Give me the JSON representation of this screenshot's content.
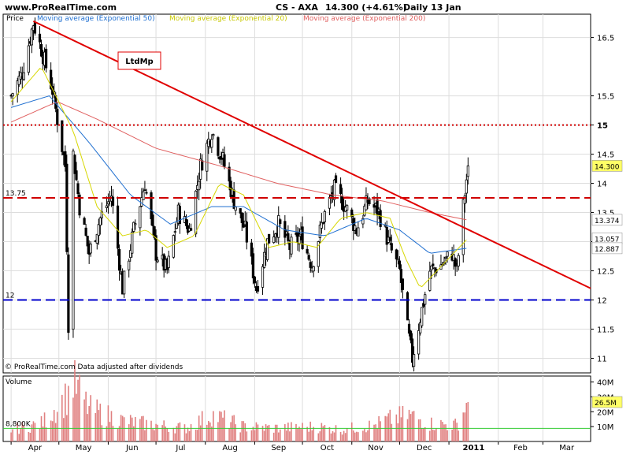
{
  "header": {
    "site": "www.ProRealTime.com",
    "instrument": "CS - AXA",
    "quote": "14.300 (+4.61%)",
    "period": "Daily  13 Jan"
  },
  "legend": {
    "price": "Price",
    "ma50": "Moving average (Exponential 50)",
    "ma20": "Moving average (Exponential 20)",
    "ma200": "Moving average (Exponential 200)"
  },
  "footer_note": "© ProRealTime.com  Data adjusted after dividends",
  "colors": {
    "candle": "#000000",
    "ma50": "#1f6fd0",
    "ma20": "#d7d700",
    "ma200": "#e06060",
    "trendline": "#e00000",
    "resistance": "#d00000",
    "support": "#0000cc",
    "volume_bar": "#e08080",
    "volume_ref": "#33cc33",
    "grid": "#dddddd"
  },
  "chart_data": [
    {
      "type": "candlestick",
      "x_labels": [
        "Apr",
        "May",
        "Jun",
        "Jul",
        "Aug",
        "Sep",
        "Oct",
        "Nov",
        "Dec",
        "2011",
        "Feb",
        "Mar"
      ],
      "y_ticks": [
        11,
        11.5,
        12,
        12.5,
        13,
        13.5,
        14,
        14.5,
        15,
        15.5,
        16.5
      ],
      "ylim": [
        10.75,
        16.9
      ],
      "grid": true,
      "last_price": 14.3,
      "series_last_values": {
        "ma20": 13.057,
        "ma50": 12.887,
        "ma200": 13.374
      },
      "horizontal_lines": [
        {
          "value": 15,
          "style": "dotted",
          "color": "#d00000",
          "label": "15"
        },
        {
          "value": 13.75,
          "style": "dashed",
          "color": "#d00000",
          "label": "13.75"
        },
        {
          "value": 12,
          "style": "dashed",
          "color": "#0000cc",
          "label": "12"
        }
      ],
      "trendline": {
        "from": {
          "date": "2010-04-15",
          "value": 16.78
        },
        "to": {
          "date": "2011-03-31",
          "value": 12.2
        }
      },
      "annotation": "LtdMp",
      "anchors": [
        [
          "2010-04-01",
          15.5
        ],
        [
          "2010-04-08",
          15.9
        ],
        [
          "2010-04-15",
          16.75
        ],
        [
          "2010-04-20",
          16.3
        ],
        [
          "2010-04-27",
          15.6
        ],
        [
          "2010-04-30",
          15.1
        ],
        [
          "2010-05-05",
          14.3
        ],
        [
          "2010-05-07",
          11.6
        ],
        [
          "2010-05-10",
          14.5
        ],
        [
          "2010-05-14",
          13.6
        ],
        [
          "2010-05-20",
          12.8
        ],
        [
          "2010-05-27",
          13.4
        ],
        [
          "2010-06-03",
          13.8
        ],
        [
          "2010-06-10",
          12.2
        ],
        [
          "2010-06-17",
          13.2
        ],
        [
          "2010-06-24",
          14.0
        ],
        [
          "2010-07-01",
          12.8
        ],
        [
          "2010-07-08",
          12.5
        ],
        [
          "2010-07-15",
          13.5
        ],
        [
          "2010-07-22",
          13.2
        ],
        [
          "2010-07-29",
          14.3
        ],
        [
          "2010-08-05",
          14.9
        ],
        [
          "2010-08-12",
          14.4
        ],
        [
          "2010-08-19",
          13.7
        ],
        [
          "2010-08-26",
          13.2
        ],
        [
          "2010-09-02",
          12.2
        ],
        [
          "2010-09-09",
          13.0
        ],
        [
          "2010-09-16",
          13.3
        ],
        [
          "2010-09-23",
          12.9
        ],
        [
          "2010-09-30",
          13.1
        ],
        [
          "2010-10-07",
          12.6
        ],
        [
          "2010-10-14",
          13.4
        ],
        [
          "2010-10-21",
          13.9
        ],
        [
          "2010-10-28",
          13.6
        ],
        [
          "2010-11-04",
          13.2
        ],
        [
          "2010-11-11",
          13.7
        ],
        [
          "2010-11-18",
          13.5
        ],
        [
          "2010-11-25",
          12.9
        ],
        [
          "2010-12-01",
          12.5
        ],
        [
          "2010-12-06",
          11.5
        ],
        [
          "2010-12-09",
          11.0
        ],
        [
          "2010-12-14",
          11.7
        ],
        [
          "2010-12-20",
          12.5
        ],
        [
          "2010-12-27",
          12.6
        ],
        [
          "2011-01-03",
          12.8
        ],
        [
          "2011-01-06",
          12.5
        ],
        [
          "2011-01-10",
          13.6
        ],
        [
          "2011-01-13",
          14.3
        ]
      ],
      "ma_anchors": {
        "ma20": [
          [
            "2010-04-01",
            15.4
          ],
          [
            "2010-04-20",
            16.0
          ],
          [
            "2010-05-10",
            14.9
          ],
          [
            "2010-05-25",
            13.6
          ],
          [
            "2010-06-10",
            13.1
          ],
          [
            "2010-06-25",
            13.2
          ],
          [
            "2010-07-08",
            12.9
          ],
          [
            "2010-07-25",
            13.1
          ],
          [
            "2010-08-10",
            14.0
          ],
          [
            "2010-08-25",
            13.8
          ],
          [
            "2010-09-10",
            12.9
          ],
          [
            "2010-09-25",
            13.0
          ],
          [
            "2010-10-10",
            12.9
          ],
          [
            "2010-10-25",
            13.4
          ],
          [
            "2010-11-10",
            13.5
          ],
          [
            "2010-11-25",
            13.4
          ],
          [
            "2010-12-05",
            12.7
          ],
          [
            "2010-12-14",
            12.2
          ],
          [
            "2010-12-28",
            12.6
          ],
          [
            "2011-01-13",
            13.06
          ]
        ],
        "ma50": [
          [
            "2010-04-01",
            15.3
          ],
          [
            "2010-04-25",
            15.5
          ],
          [
            "2010-05-20",
            14.7
          ],
          [
            "2010-06-15",
            13.8
          ],
          [
            "2010-07-10",
            13.3
          ],
          [
            "2010-08-05",
            13.6
          ],
          [
            "2010-08-25",
            13.6
          ],
          [
            "2010-09-20",
            13.2
          ],
          [
            "2010-10-15",
            13.1
          ],
          [
            "2010-11-10",
            13.4
          ],
          [
            "2010-12-01",
            13.2
          ],
          [
            "2010-12-20",
            12.8
          ],
          [
            "2011-01-13",
            12.89
          ]
        ],
        "ma200": [
          [
            "2010-04-01",
            15.05
          ],
          [
            "2010-04-30",
            15.4
          ],
          [
            "2010-05-25",
            15.1
          ],
          [
            "2010-07-01",
            14.6
          ],
          [
            "2010-08-10",
            14.3
          ],
          [
            "2010-09-15",
            14.0
          ],
          [
            "2010-10-20",
            13.8
          ],
          [
            "2010-11-20",
            13.7
          ],
          [
            "2010-12-20",
            13.5
          ],
          [
            "2011-01-13",
            13.37
          ]
        ]
      }
    },
    {
      "type": "bar",
      "title": "Volume",
      "y_ticks": [
        "10M",
        "20M",
        "30M",
        "40M"
      ],
      "ylim": [
        0,
        44
      ],
      "reference_line": {
        "value": 8.8,
        "label": "8,800K"
      },
      "last_value_label": "26.5M",
      "volume_anchors_m": [
        [
          "2010-04-01",
          8
        ],
        [
          "2010-04-20",
          12
        ],
        [
          "2010-05-06",
          30
        ],
        [
          "2010-05-10",
          40
        ],
        [
          "2010-05-20",
          22
        ],
        [
          "2010-06-10",
          14
        ],
        [
          "2010-07-01",
          11
        ],
        [
          "2010-07-20",
          9
        ],
        [
          "2010-08-05",
          18
        ],
        [
          "2010-08-25",
          10
        ],
        [
          "2010-09-15",
          9
        ],
        [
          "2010-10-10",
          10
        ],
        [
          "2010-10-25",
          8
        ],
        [
          "2010-11-15",
          11
        ],
        [
          "2010-11-25",
          15
        ],
        [
          "2010-12-07",
          18
        ],
        [
          "2010-12-20",
          12
        ],
        [
          "2011-01-06",
          11
        ],
        [
          "2011-01-13",
          26.5
        ]
      ]
    }
  ]
}
